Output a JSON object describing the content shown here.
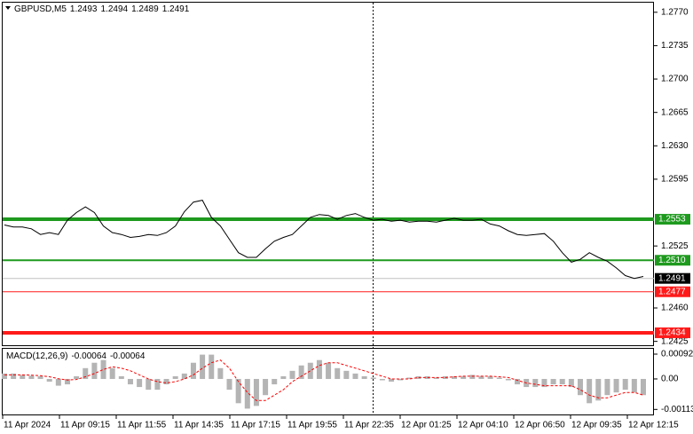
{
  "chart_data": [
    {
      "type": "line",
      "title": "GBPUSD,M5",
      "ohlc": [
        1.2493,
        1.2494,
        1.2489,
        1.2491
      ],
      "color": "#000000",
      "values": [
        1.2547,
        1.2545,
        1.2545,
        1.2543,
        1.2537,
        1.2539,
        1.2537,
        1.2552,
        1.256,
        1.2566,
        1.256,
        1.2546,
        1.2539,
        1.2537,
        1.2534,
        1.2535,
        1.2537,
        1.2536,
        1.2539,
        1.2546,
        1.2561,
        1.2571,
        1.2573,
        1.2555,
        1.2546,
        1.2532,
        1.2518,
        1.2513,
        1.2513,
        1.2522,
        1.253,
        1.2534,
        1.2537,
        1.2546,
        1.2555,
        1.2558,
        1.2557,
        1.2553,
        1.2557,
        1.2559,
        1.2555,
        1.2552,
        1.2553,
        1.2551,
        1.2552,
        1.255,
        1.2551,
        1.2551,
        1.255,
        1.2552,
        1.2554,
        1.2552,
        1.2552,
        1.2553,
        1.2548,
        1.2546,
        1.2541,
        1.2537,
        1.2536,
        1.2537,
        1.2538,
        1.253,
        1.2518,
        1.2508,
        1.2511,
        1.2518,
        1.2513,
        1.2509,
        1.2502,
        1.2494,
        1.2491,
        1.2493
      ],
      "ylim": [
        1.242,
        1.2781
      ],
      "yticks": [
        {
          "value": 1.277,
          "label": "1.2770"
        },
        1.2735,
        {
          "value": 1.27,
          "label": "1.2700"
        },
        1.2665,
        {
          "value": 1.263,
          "label": "1.2630"
        },
        1.2595,
        1.2525,
        {
          "value": 1.246,
          "label": "1.2460"
        },
        1.2425
      ],
      "levels": [
        {
          "value": 1.2553,
          "color": "#1e9a1e"
        },
        {
          "value": 1.251,
          "label": "1.2510",
          "color": "#1e9a1e"
        },
        {
          "value": 1.2477,
          "color": "#ff1a1a"
        },
        {
          "value": 1.2434,
          "color": "#ff1a1a"
        }
      ],
      "time_labels": [
        "11 Apr 2024",
        "11 Apr 09:15",
        "11 Apr 11:55",
        "11 Apr 14:35",
        "11 Apr 17:15",
        "11 Apr 19:55",
        "11 Apr 22:35",
        "12 Apr 01:25",
        "12 Apr 04:10",
        "12 Apr 06:50",
        "12 Apr 09:35",
        "12 Apr 12:15"
      ]
    },
    {
      "type": "macd",
      "title": "MACD(12,26,9)",
      "readings": [
        -0.00064,
        -0.00064
      ],
      "series": [
        {
          "color": "#b4b4b4",
          "values": [
            0.0002,
            0.0002,
            0.00015,
            0.00012,
            0.0001,
            -0.0001,
            -0.00025,
            -0.0002,
            0.0001,
            0.0004,
            0.0006,
            0.0007,
            0.0004,
            0.0001,
            -0.0002,
            -0.0003,
            -0.0004,
            -0.0004,
            -0.0002,
            0.0001,
            0.0002,
            0.0006,
            0.0009,
            0.0009,
            0.0004,
            -0.0004,
            -0.0009,
            -0.0011,
            -0.001,
            -0.0006,
            -0.0002,
            0.0001,
            0.0003,
            0.0005,
            0.0006,
            0.0007,
            0.0006,
            0.0004,
            0.0003,
            0.0002,
            0.0001,
            5e-05,
            -5e-05,
            -0.0001,
            -5e-05,
            5e-05,
            0.0001,
            0.0001,
            5e-05,
            0.0001,
            0.0001,
            0.0001,
            0.00015,
            0.0001,
            0.0001,
            5e-05,
            -5e-05,
            -0.0002,
            -0.0003,
            -0.0003,
            -0.0003,
            -0.0002,
            -0.0002,
            -0.0003,
            -0.0006,
            -0.0009,
            -0.0008,
            -0.0006,
            -0.0005,
            -0.0004,
            -0.0005,
            -0.0006
          ]
        },
        {
          "color": "#ff0000",
          "values": [
            0.00015,
            0.00015,
            0.00015,
            0.00014,
            0.00012,
            8e-05,
            1e-05,
            -4e-05,
            -2e-05,
            8e-05,
            0.0002,
            0.00035,
            0.00045,
            0.0004,
            0.0003,
            0.00015,
            0,
            -0.0001,
            -0.00015,
            -0.0001,
            0,
            0.00015,
            0.0004,
            0.0006,
            0.0007,
            0.0004,
            -0.0001,
            -0.0005,
            -0.0008,
            -0.0008,
            -0.0006,
            -0.0004,
            -0.0001,
            0.0001,
            0.0003,
            0.0005,
            0.0006,
            0.0006,
            0.0005,
            0.0004,
            0.0003,
            0.0002,
            0.0001,
            0,
            0,
            0,
            5e-05,
            5e-05,
            5e-05,
            5e-05,
            8e-05,
            0.0001,
            0.0001,
            0.0001,
            0.0001,
            8e-05,
            5e-05,
            -5e-05,
            -0.00015,
            -0.0002,
            -0.00025,
            -0.00025,
            -0.00025,
            -0.00025,
            -0.0004,
            -0.0006,
            -0.0007,
            -0.0007,
            -0.0006,
            -0.0005,
            -0.0005,
            -0.0006
          ]
        }
      ],
      "ylim": [
        -0.00135,
        0.00115
      ],
      "yticks": [
        0.00092,
        {
          "value": 0,
          "label": "0.00"
        },
        -0.00113
      ]
    }
  ]
}
